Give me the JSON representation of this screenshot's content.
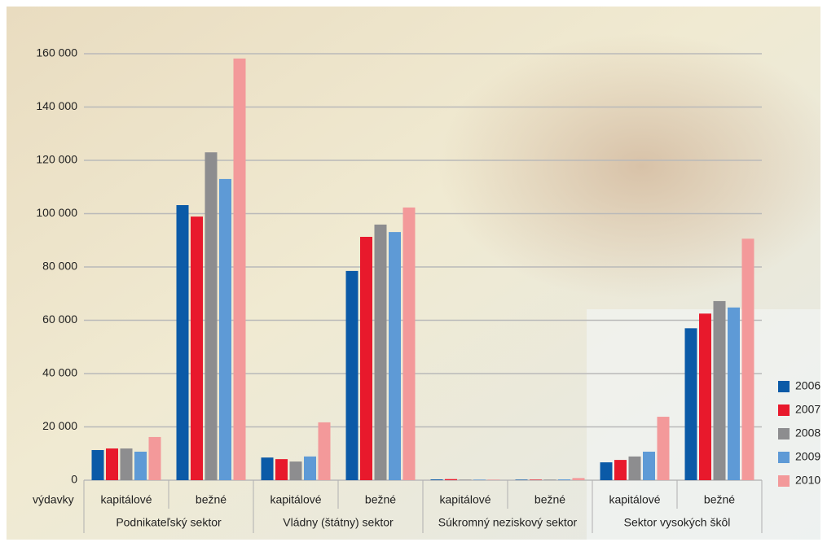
{
  "chart_data": {
    "type": "bar",
    "x_label": "výdavky",
    "categories": [
      "kapitálové",
      "bežné",
      "kapitálové",
      "bežné",
      "kapitálové",
      "bežné",
      "kapitálové",
      "bežné"
    ],
    "groups": [
      "Podnikateľský sektor",
      "Vládny (štátny) sektor",
      "Súkromný neziskový sektor",
      "Sektor vysokých škôl"
    ],
    "series": [
      {
        "name": "2006",
        "color": "#0b5aa7",
        "values": [
          11300,
          103200,
          8500,
          78500,
          300,
          200,
          6700,
          57000
        ]
      },
      {
        "name": "2007",
        "color": "#e8192c",
        "values": [
          11900,
          98900,
          7900,
          91300,
          400,
          200,
          7600,
          62500
        ]
      },
      {
        "name": "2008",
        "color": "#8d8d8f",
        "values": [
          11900,
          123000,
          7000,
          95900,
          200,
          200,
          8900,
          67200
        ]
      },
      {
        "name": "2009",
        "color": "#5e9ad6",
        "values": [
          10700,
          113000,
          8900,
          93100,
          200,
          300,
          10700,
          64800
        ]
      },
      {
        "name": "2010",
        "color": "#f3999a",
        "values": [
          16200,
          158200,
          21700,
          102300,
          200,
          800,
          23800,
          90600
        ]
      }
    ],
    "ylim": [
      0,
      160000
    ],
    "yticks": [
      0,
      {
        "value": 20000,
        "label": "20 000"
      },
      {
        "value": 40000,
        "label": "40 000"
      },
      {
        "value": 60000,
        "label": "60 000"
      },
      {
        "value": 80000,
        "label": "80 000"
      },
      {
        "value": 100000,
        "label": "100 000"
      },
      {
        "value": 120000,
        "label": "120 000"
      },
      {
        "value": 140000,
        "label": "140 000"
      },
      {
        "value": 160000,
        "label": "160 000"
      }
    ],
    "grid": true,
    "legend": "right"
  }
}
